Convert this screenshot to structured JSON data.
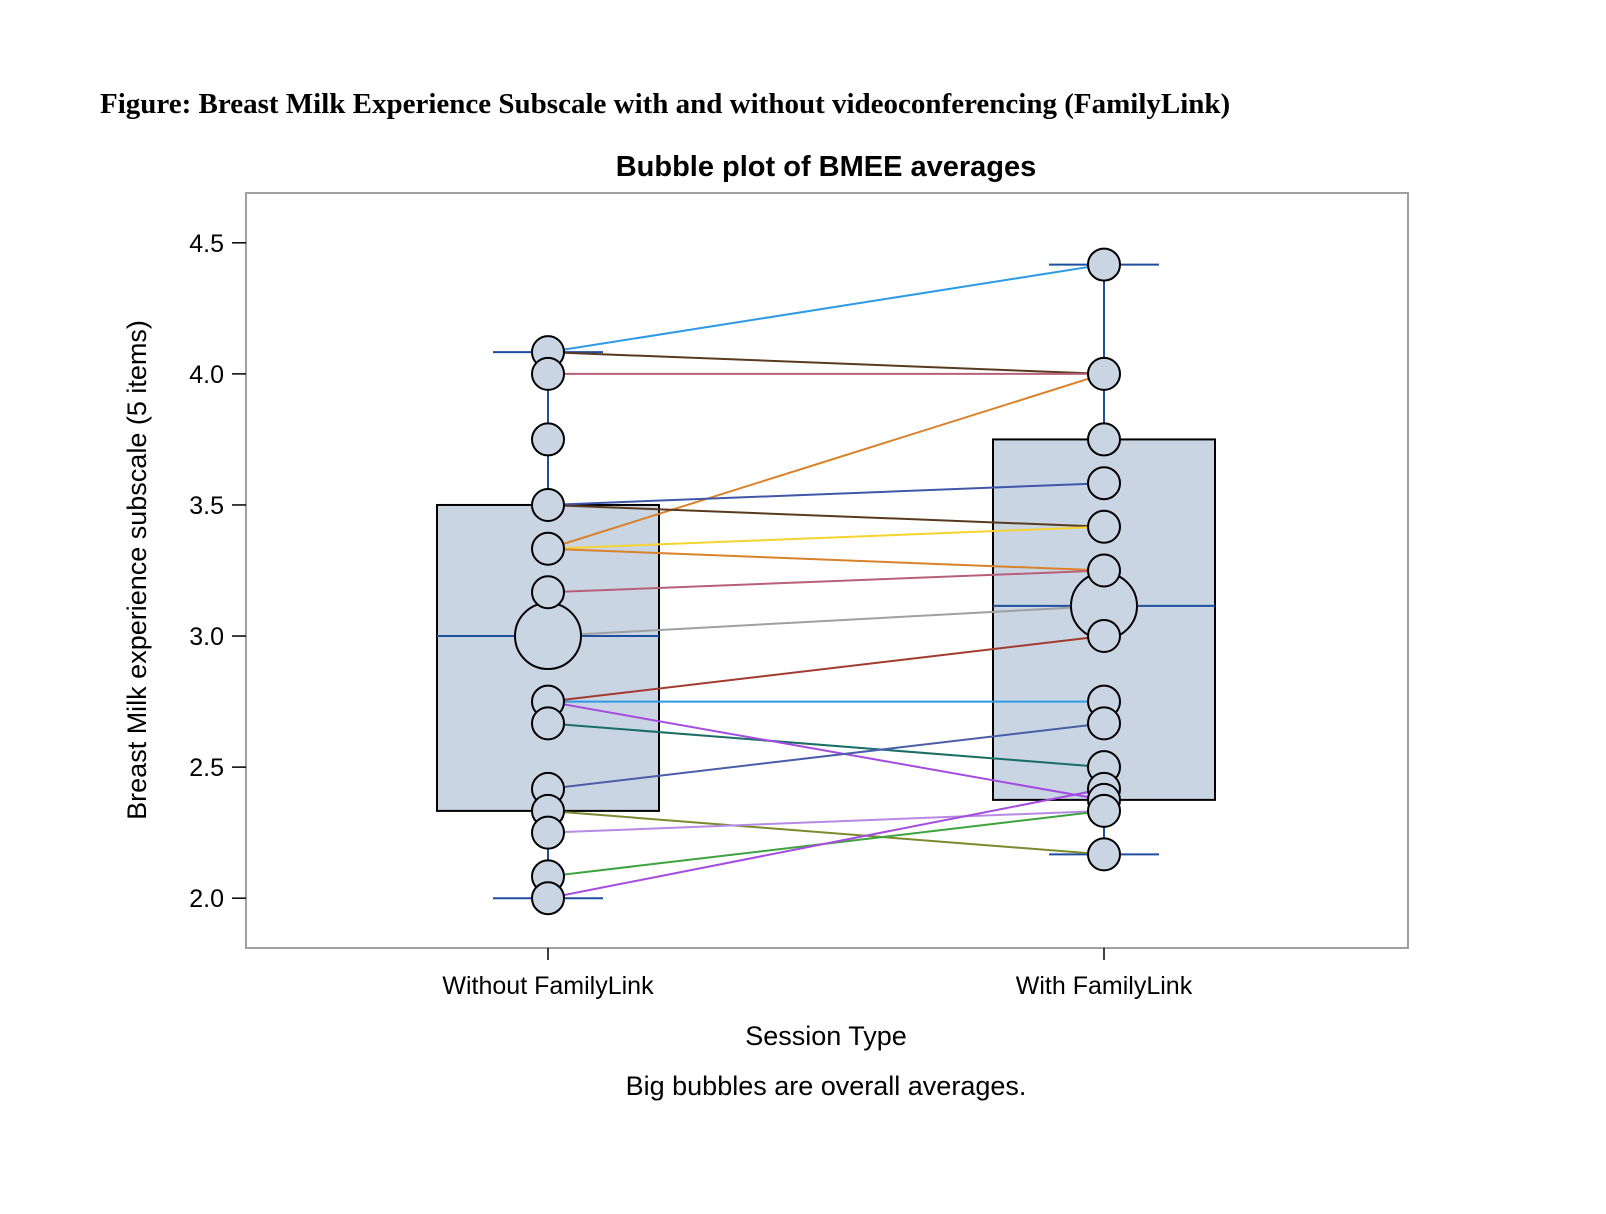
{
  "figure_caption": "Figure: Breast Milk Experience Subscale with and without videoconferencing (FamilyLink)",
  "chart_data": {
    "type": "box-bubble",
    "title": "Bubble plot of BMEE averages",
    "xlabel": "Session Type",
    "ylabel": "Breast Milk experience subscale (5 items)",
    "footnote": "Big bubbles are overall averages.",
    "categories": [
      "Without FamilyLink",
      "With FamilyLink"
    ],
    "ylim": [
      1.81,
      4.69
    ],
    "yticks": [
      2.0,
      2.5,
      3.0,
      3.5,
      4.0,
      4.5
    ],
    "ytick_labels": [
      "2.0",
      "2.5",
      "3.0",
      "3.5",
      "4.0",
      "4.5"
    ],
    "boxes": [
      {
        "category": "Without FamilyLink",
        "min": 2.0,
        "q1": 2.333,
        "median": 3.0,
        "q3": 3.5,
        "max": 4.083
      },
      {
        "category": "With FamilyLink",
        "min": 2.167,
        "q1": 2.375,
        "median": 3.115,
        "q3": 3.75,
        "max": 4.417
      }
    ],
    "averages": [
      {
        "category": "Without FamilyLink",
        "value": 3.0
      },
      {
        "category": "With FamilyLink",
        "value": 3.115
      }
    ],
    "points": [
      {
        "category": "Without FamilyLink",
        "values": [
          4.083,
          4.0,
          3.75,
          3.5,
          3.333,
          3.167,
          2.75,
          2.667,
          2.417,
          2.333,
          2.25,
          2.083,
          2.0
        ]
      },
      {
        "category": "With FamilyLink",
        "values": [
          4.417,
          4.0,
          3.75,
          3.583,
          3.417,
          3.25,
          3.0,
          2.75,
          2.667,
          2.5,
          2.417,
          2.375,
          2.333,
          2.167
        ]
      }
    ],
    "pairs": [
      {
        "without": 4.083,
        "with": 4.417,
        "color": "#2E9AE6"
      },
      {
        "without": 4.083,
        "with": 4.0,
        "color": "#5A3A1E"
      },
      {
        "without": 4.0,
        "with": 4.0,
        "color": "#B8607A"
      },
      {
        "without": 3.333,
        "with": 4.0,
        "color": "#D9822B"
      },
      {
        "without": 3.5,
        "with": 3.583,
        "color": "#3F57A8"
      },
      {
        "without": 3.5,
        "with": 3.417,
        "color": "#5A3A1E"
      },
      {
        "without": 3.333,
        "with": 3.417,
        "color": "#F5D430"
      },
      {
        "without": 3.333,
        "with": 3.25,
        "color": "#D9822B"
      },
      {
        "without": 3.167,
        "with": 3.25,
        "color": "#B8607A"
      },
      {
        "without": 3.0,
        "with": 3.115,
        "color": "#A0A0A0"
      },
      {
        "without": 2.75,
        "with": 3.0,
        "color": "#A23B2E"
      },
      {
        "without": 2.75,
        "with": 2.75,
        "color": "#2E9AE6"
      },
      {
        "without": 2.667,
        "with": 2.5,
        "color": "#1A6E66"
      },
      {
        "without": 2.75,
        "with": 2.375,
        "color": "#A44BE0"
      },
      {
        "without": 2.417,
        "with": 2.667,
        "color": "#4A5EA8"
      },
      {
        "without": 2.333,
        "with": 2.167,
        "color": "#7C8A2E"
      },
      {
        "without": 2.25,
        "with": 2.333,
        "color": "#B88AE6"
      },
      {
        "without": 2.083,
        "with": 2.333,
        "color": "#3DA33D"
      },
      {
        "without": 2.0,
        "with": 2.417,
        "color": "#A44BE0"
      }
    ],
    "colors": {
      "box_fill": "#C9D5E3",
      "box_stroke": "#000000",
      "median_line": "#1F4E9E",
      "whisker": "#1F4E9E",
      "bubble_fill": "#C9D5E3",
      "bubble_stroke": "#000000",
      "frame": "#A0A0A0"
    },
    "grid": false,
    "legend": "none"
  }
}
